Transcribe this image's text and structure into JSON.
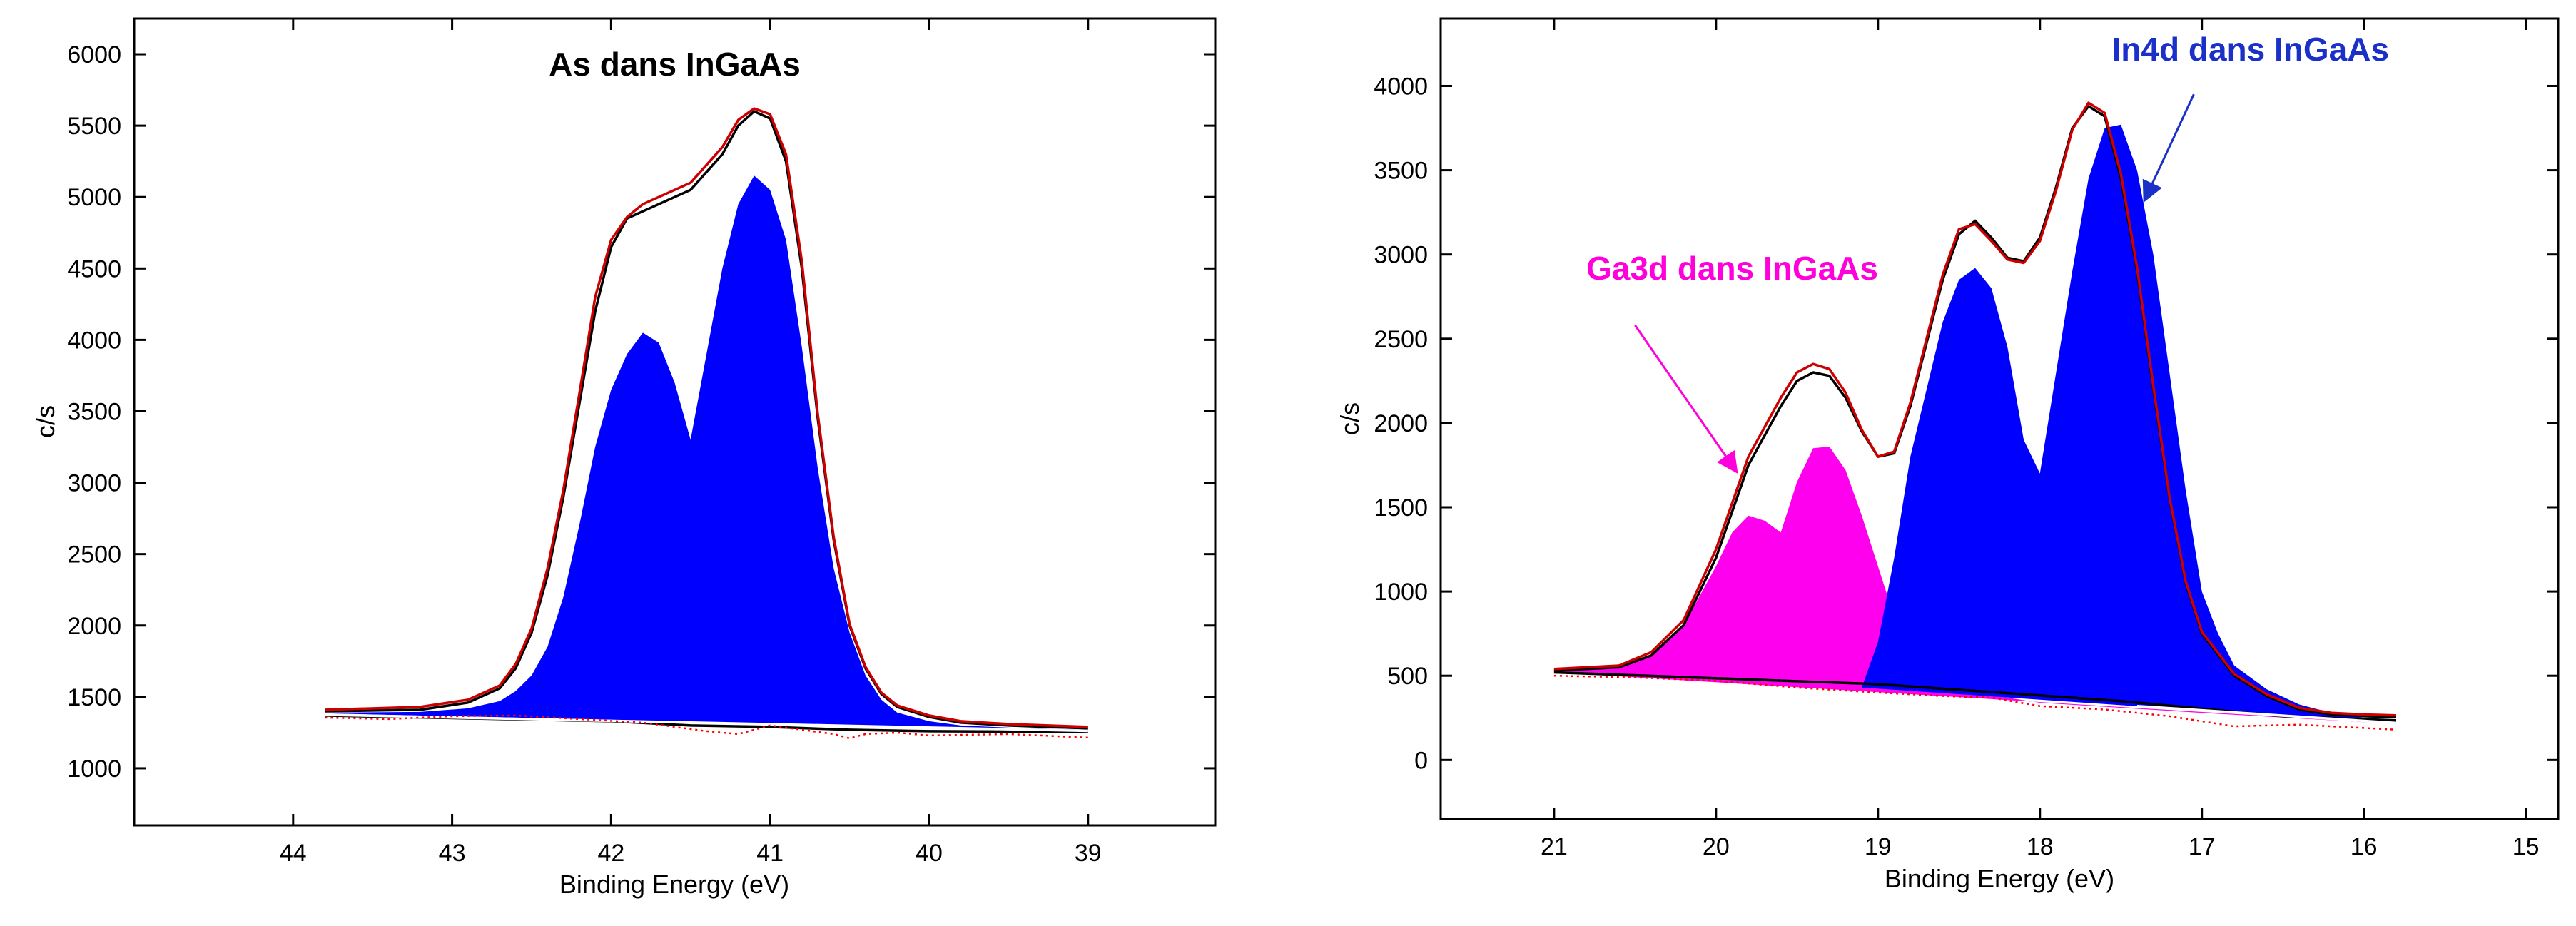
{
  "chart_data": [
    {
      "type": "area",
      "title": "",
      "xlabel": "Binding Energy (eV)",
      "ylabel": "c/s",
      "x_reversed": true,
      "xlim": [
        45,
        38.2
      ],
      "ylim": [
        600,
        6250
      ],
      "xticks": [
        44,
        43,
        42,
        41,
        40,
        39
      ],
      "yticks": [
        1000,
        1500,
        2000,
        2500,
        3000,
        3500,
        4000,
        4500,
        5000,
        5500,
        6000
      ],
      "grid": false,
      "annotations": [
        {
          "text": "As dans InGaAs",
          "x": 41.6,
          "y": 5850,
          "color": "#000000"
        }
      ],
      "series": [
        {
          "kind": "fill",
          "color": "#0000ff",
          "baseline_from": [
            [
              43.8,
              1385
            ],
            [
              39.0,
              1265
            ]
          ],
          "x": [
            43.8,
            43.2,
            42.9,
            42.7,
            42.6,
            42.5,
            42.4,
            42.3,
            42.2,
            42.1,
            42.0,
            41.9,
            41.8,
            41.7,
            41.6,
            41.5,
            41.4,
            41.3,
            41.2,
            41.1,
            41.0,
            40.9,
            40.8,
            40.7,
            40.6,
            40.5,
            40.4,
            40.3,
            40.2,
            40.0,
            39.8,
            39.5,
            39.0
          ],
          "y": [
            1390,
            1395,
            1420,
            1470,
            1540,
            1650,
            1850,
            2200,
            2700,
            3250,
            3650,
            3900,
            4050,
            3980,
            3700,
            3300,
            3900,
            4500,
            4950,
            5150,
            5050,
            4700,
            3950,
            3100,
            2400,
            1950,
            1650,
            1480,
            1390,
            1330,
            1300,
            1285,
            1270
          ]
        },
        {
          "kind": "line",
          "color": "#000000",
          "x": [
            43.8,
            43.2,
            42.9,
            42.7,
            42.6,
            42.5,
            42.4,
            42.3,
            42.2,
            42.1,
            42.0,
            41.9,
            41.8,
            41.7,
            41.5,
            41.3,
            41.2,
            41.1,
            41.0,
            40.9,
            40.8,
            40.7,
            40.6,
            40.5,
            40.4,
            40.3,
            40.2,
            40.0,
            39.8,
            39.5,
            39.0
          ],
          "y": [
            1400,
            1410,
            1460,
            1560,
            1700,
            1950,
            2350,
            2900,
            3550,
            4200,
            4650,
            4850,
            4900,
            4950,
            5050,
            5300,
            5500,
            5600,
            5550,
            5250,
            4500,
            3450,
            2600,
            2000,
            1700,
            1520,
            1430,
            1360,
            1320,
            1300,
            1280
          ]
        },
        {
          "kind": "line",
          "color": "#cc0000",
          "x": [
            43.8,
            43.2,
            42.9,
            42.7,
            42.6,
            42.5,
            42.4,
            42.3,
            42.2,
            42.1,
            42.0,
            41.9,
            41.8,
            41.7,
            41.5,
            41.3,
            41.2,
            41.1,
            41.0,
            40.9,
            40.8,
            40.7,
            40.6,
            40.5,
            40.4,
            40.3,
            40.2,
            40.0,
            39.8,
            39.5,
            39.0
          ],
          "y": [
            1410,
            1430,
            1480,
            1580,
            1730,
            1980,
            2400,
            2950,
            3620,
            4300,
            4700,
            4860,
            4950,
            5000,
            5100,
            5350,
            5540,
            5620,
            5580,
            5300,
            4550,
            3480,
            2620,
            2010,
            1710,
            1530,
            1440,
            1370,
            1330,
            1310,
            1290
          ]
        },
        {
          "kind": "line",
          "color": "#000000",
          "x": [
            43.8,
            42.0,
            41.5,
            41.0,
            40.5,
            40.0,
            39.0
          ],
          "y": [
            1370,
            1330,
            1300,
            1290,
            1270,
            1260,
            1255
          ]
        },
        {
          "kind": "line",
          "color": "#ffffff",
          "x": [
            43.8,
            39.0
          ],
          "y": [
            1375,
            1262
          ]
        },
        {
          "kind": "dotted",
          "color": "#ff0000",
          "x": [
            43.8,
            43.4,
            43.0,
            42.6,
            42.2,
            41.8,
            41.4,
            41.2,
            41.0,
            40.8,
            40.6,
            40.5,
            40.4,
            40.2,
            40.0,
            39.5,
            39.0
          ],
          "y": [
            1355,
            1345,
            1365,
            1370,
            1345,
            1320,
            1260,
            1240,
            1300,
            1270,
            1240,
            1210,
            1240,
            1250,
            1230,
            1240,
            1215
          ]
        }
      ]
    },
    {
      "type": "area",
      "title": "",
      "xlabel": "Binding Energy (eV)",
      "ylabel": "c/s",
      "x_reversed": true,
      "xlim": [
        21.7,
        14.8
      ],
      "ylim": [
        -350,
        4400
      ],
      "xticks": [
        21,
        20,
        19,
        18,
        17,
        16,
        15
      ],
      "yticks": [
        0,
        500,
        1000,
        1500,
        2000,
        2500,
        3000,
        3500,
        4000
      ],
      "grid": false,
      "annotations": [
        {
          "text": "In4d dans InGaAs",
          "x": 16.7,
          "y": 4150,
          "color": "#1a30c8",
          "arrow_from": [
            17.05,
            3950
          ],
          "arrow_to": [
            17.35,
            3330
          ]
        },
        {
          "text": "Ga3d dans InGaAs",
          "x": 19.9,
          "y": 2850,
          "color": "#ff00dd",
          "arrow_from": [
            20.5,
            2580
          ],
          "arrow_to": [
            19.88,
            1720
          ]
        }
      ],
      "series": [
        {
          "kind": "fill",
          "color": "#ff00ee",
          "baseline_from": [
            [
              21.0,
              520
            ],
            [
              15.8,
              215
            ]
          ],
          "x": [
            21.0,
            20.6,
            20.4,
            20.2,
            20.0,
            19.9,
            19.8,
            19.7,
            19.6,
            19.5,
            19.4,
            19.3,
            19.2,
            19.1,
            19.0,
            18.9,
            18.8,
            18.6,
            18.4,
            18.2,
            18.0,
            17.0,
            16.0,
            15.8
          ],
          "y": [
            540,
            560,
            620,
            800,
            1150,
            1350,
            1450,
            1420,
            1350,
            1650,
            1850,
            1860,
            1720,
            1450,
            1150,
            850,
            650,
            450,
            390,
            370,
            340,
            280,
            225,
            220
          ]
        },
        {
          "kind": "fill",
          "color": "#0000ff",
          "baseline_from": [
            [
              19.1,
              430
            ],
            [
              15.8,
              215
            ]
          ],
          "x": [
            19.1,
            19.0,
            18.9,
            18.8,
            18.6,
            18.5,
            18.4,
            18.3,
            18.2,
            18.1,
            18.0,
            17.9,
            17.8,
            17.7,
            17.6,
            17.5,
            17.4,
            17.3,
            17.2,
            17.1,
            17.0,
            16.9,
            16.8,
            16.6,
            16.4,
            16.2,
            16.0,
            15.8
          ],
          "y": [
            430,
            700,
            1200,
            1800,
            2600,
            2850,
            2920,
            2800,
            2450,
            1900,
            1700,
            2300,
            2900,
            3450,
            3750,
            3770,
            3500,
            3000,
            2300,
            1600,
            1000,
            750,
            560,
            420,
            330,
            280,
            250,
            240
          ]
        },
        {
          "kind": "line",
          "color": "#000000",
          "x": [
            21.0,
            20.6,
            20.4,
            20.2,
            20.0,
            19.8,
            19.6,
            19.5,
            19.4,
            19.3,
            19.2,
            19.1,
            19.0,
            18.9,
            18.8,
            18.6,
            18.5,
            18.4,
            18.3,
            18.2,
            18.1,
            18.0,
            17.9,
            17.8,
            17.7,
            17.6,
            17.5,
            17.4,
            17.3,
            17.2,
            17.1,
            17.0,
            16.8,
            16.6,
            16.4,
            16.2,
            16.0,
            15.8
          ],
          "y": [
            530,
            550,
            620,
            800,
            1200,
            1750,
            2100,
            2250,
            2300,
            2280,
            2150,
            1950,
            1800,
            1820,
            2100,
            2850,
            3120,
            3200,
            3100,
            2980,
            2960,
            3100,
            3400,
            3750,
            3880,
            3820,
            3450,
            2900,
            2200,
            1550,
            1050,
            750,
            500,
            380,
            300,
            270,
            260,
            255
          ]
        },
        {
          "kind": "line",
          "color": "#cc0000",
          "x": [
            21.0,
            20.6,
            20.4,
            20.2,
            20.0,
            19.8,
            19.6,
            19.5,
            19.4,
            19.3,
            19.2,
            19.1,
            19.0,
            18.9,
            18.8,
            18.6,
            18.5,
            18.4,
            18.3,
            18.2,
            18.1,
            18.0,
            17.9,
            17.8,
            17.7,
            17.6,
            17.5,
            17.4,
            17.3,
            17.2,
            17.1,
            17.0,
            16.8,
            16.6,
            16.4,
            16.2,
            16.0,
            15.8
          ],
          "y": [
            540,
            560,
            640,
            830,
            1250,
            1800,
            2150,
            2300,
            2350,
            2320,
            2180,
            1960,
            1800,
            1830,
            2120,
            2880,
            3150,
            3180,
            3080,
            2970,
            2950,
            3080,
            3380,
            3740,
            3900,
            3840,
            3480,
            2920,
            2220,
            1560,
            1060,
            760,
            510,
            390,
            310,
            280,
            270,
            265
          ]
        },
        {
          "kind": "line",
          "color": "#000000",
          "x": [
            21.0,
            19.0,
            17.5,
            16.5,
            15.8
          ],
          "y": [
            520,
            450,
            350,
            260,
            235
          ]
        },
        {
          "kind": "line",
          "color": "#ffffff",
          "x": [
            17.4,
            15.8
          ],
          "y": [
            320,
            220
          ]
        },
        {
          "kind": "dotted",
          "color": "#ff0000",
          "x": [
            21.0,
            20.5,
            20.0,
            19.5,
            19.0,
            18.6,
            18.3,
            18.0,
            17.6,
            17.2,
            16.8,
            16.4,
            16.0,
            15.8
          ],
          "y": [
            500,
            490,
            470,
            430,
            400,
            380,
            370,
            320,
            300,
            260,
            200,
            210,
            190,
            180
          ]
        }
      ]
    }
  ]
}
